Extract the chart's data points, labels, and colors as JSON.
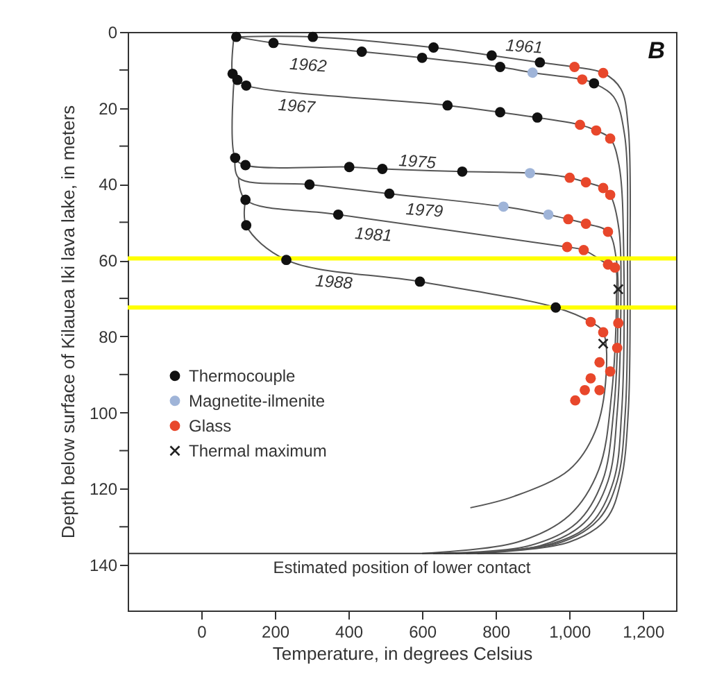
{
  "chart_data": {
    "type": "scatter",
    "xlabel": "Temperature, in degrees Celsius",
    "ylabel": "Depth below surface of Kilauea Iki lava lake, in meters",
    "xlim": [
      -200,
      1290
    ],
    "ylim": [
      152,
      0
    ],
    "xticks": [
      0,
      200,
      400,
      600,
      800,
      {
        "value": 1000,
        "label": "1,000"
      },
      {
        "value": 1200,
        "label": "1,200"
      }
    ],
    "yticks": [
      0,
      {
        "value": 10,
        "label": null
      },
      20,
      {
        "value": 30,
        "label": null
      },
      40,
      {
        "value": 50,
        "label": null
      },
      60,
      {
        "value": 70,
        "label": null
      },
      80,
      {
        "value": 90,
        "label": null
      },
      100,
      {
        "value": 110,
        "label": null
      },
      120,
      {
        "value": 130,
        "label": null
      },
      140
    ],
    "grid": false,
    "legend": "left",
    "series": [
      {
        "type": "line",
        "color": "#555555",
        "x": [
          95,
          303,
          631,
          789,
          920,
          1014,
          1092,
          1140,
          1160,
          1165,
          1160,
          1140,
          1100,
          1000,
          750
        ],
        "values": [
          1.3,
          1.3,
          4.1,
          6.2,
          8,
          9.2,
          10.8,
          15,
          25,
          60,
          100,
          118,
          128,
          134,
          137
        ]
      },
      {
        "type": "line",
        "color": "#555555",
        "x": [
          95,
          196,
          436,
          600,
          812,
          900,
          1035,
          1067,
          1120,
          1150,
          1158,
          1152,
          1130,
          1080,
          980,
          720
        ],
        "values": [
          1.3,
          2.9,
          5.2,
          6.8,
          9.2,
          10.7,
          12.5,
          13.5,
          17,
          27,
          60,
          100,
          118,
          128,
          134,
          137
        ]
      },
      {
        "type": "line",
        "color": "#555555",
        "x": [
          90,
          85,
          98,
          122,
          669,
          812,
          913,
          1029,
          1073,
          1111,
          1135,
          1148,
          1142,
          1120,
          1060,
          950,
          690
        ],
        "values": [
          0,
          11,
          12.6,
          14.1,
          19.3,
          21.1,
          22.5,
          24.4,
          25.9,
          28,
          35,
          60,
          100,
          118,
          129,
          134.5,
          137
        ]
      },
      {
        "type": "line",
        "color": "#555555",
        "x": [
          90,
          92,
          120,
          402,
          492,
          709,
          893,
          1001,
          1045,
          1092,
          1111,
          1135,
          1140,
          1130,
          1105,
          1040,
          920,
          660
        ],
        "values": [
          11,
          33.1,
          35,
          35.5,
          36,
          36.7,
          37.1,
          38.3,
          39.5,
          41,
          42.8,
          52,
          70,
          100,
          118,
          129,
          135,
          137
        ]
      },
      {
        "type": "line",
        "color": "#555555",
        "x": [
          92,
          101,
          294,
          511,
          821,
          943,
          997,
          1045,
          1105,
          1128,
          1132,
          1120,
          1090,
          1020,
          890,
          630
        ],
        "values": [
          33.1,
          38.3,
          40.1,
          42.5,
          45.9,
          48,
          49.2,
          50.4,
          52.5,
          60,
          75,
          100,
          118,
          129,
          135,
          137
        ]
      },
      {
        "type": "line",
        "color": "#555555",
        "x": [
          101,
          120,
          372,
          994,
          1039,
          1105,
          1124,
          1128,
          1115,
          1080,
          1000,
          860,
          600
        ],
        "values": [
          38.3,
          44.1,
          48,
          56.5,
          57.3,
          61.1,
          61.9,
          70,
          95,
          115,
          127,
          134,
          137
        ]
      },
      {
        "type": "line",
        "color": "#555555",
        "x": [
          120,
          122,
          231,
          594,
          963,
          1058,
          1092,
          1100,
          1070,
          1000,
          850,
          731
        ],
        "values": [
          44.1,
          50.8,
          59.9,
          65.6,
          72.4,
          76.2,
          78.9,
          90,
          105,
          115,
          122,
          125
        ]
      },
      {
        "type": "scatter",
        "name": "Thermocouple",
        "color": "#111111",
        "marker": "circle",
        "x": [
          95,
          303,
          631,
          789,
          920,
          196,
          436,
          600,
          812,
          1067,
          85,
          98,
          122,
          669,
          812,
          913,
          92,
          120,
          402,
          492,
          709,
          294,
          511,
          120,
          372,
          122,
          231,
          594,
          963
        ],
        "values": [
          1.3,
          1.3,
          4.1,
          6.2,
          8,
          2.9,
          5.2,
          6.8,
          9.2,
          13.5,
          11,
          12.6,
          14.1,
          19.3,
          21.1,
          22.5,
          33.1,
          35,
          35.5,
          36,
          36.7,
          40.1,
          42.5,
          44.1,
          48,
          50.8,
          59.9,
          65.6,
          72.4
        ]
      },
      {
        "type": "scatter",
        "name": "Magnetite-ilmenite",
        "color": "#9fb4d8",
        "marker": "circle",
        "x": [
          900,
          893,
          821,
          943
        ],
        "values": [
          10.7,
          37.1,
          45.9,
          48
        ]
      },
      {
        "type": "scatter",
        "name": "Glass",
        "color": "#e8472b",
        "marker": "circle",
        "x": [
          1014,
          1092,
          1035,
          1029,
          1073,
          1111,
          1001,
          1045,
          1092,
          1111,
          997,
          1045,
          1105,
          994,
          1039,
          1105,
          1124,
          1058,
          1092,
          1133,
          1130,
          1082,
          1111,
          1058,
          1042,
          1082,
          1016
        ],
        "values": [
          9.2,
          10.8,
          12.5,
          24.4,
          25.9,
          28,
          38.3,
          39.5,
          41,
          42.8,
          49.2,
          50.4,
          52.5,
          56.5,
          57.3,
          61.1,
          61.9,
          76.2,
          78.9,
          76.5,
          83,
          86.8,
          89.2,
          91,
          94.1,
          94.1,
          96.8
        ]
      },
      {
        "type": "scatter",
        "name": "Thermal maximum",
        "color": "#222222",
        "marker": "cross",
        "x": [
          1133,
          1092
        ],
        "values": [
          67.6,
          81.9
        ]
      }
    ],
    "ref_lines": [
      {
        "axis": "y",
        "value": 59.5,
        "color": "#ffff00"
      },
      {
        "axis": "y",
        "value": 72.4,
        "color": "#ffff00"
      },
      {
        "axis": "y",
        "value": 137,
        "label": "Estimated position of lower contact",
        "color": "#333333"
      }
    ],
    "annotations": [
      "1961",
      "1962",
      "1967",
      "1975",
      "1979",
      "1981",
      "1988",
      "B"
    ]
  }
}
